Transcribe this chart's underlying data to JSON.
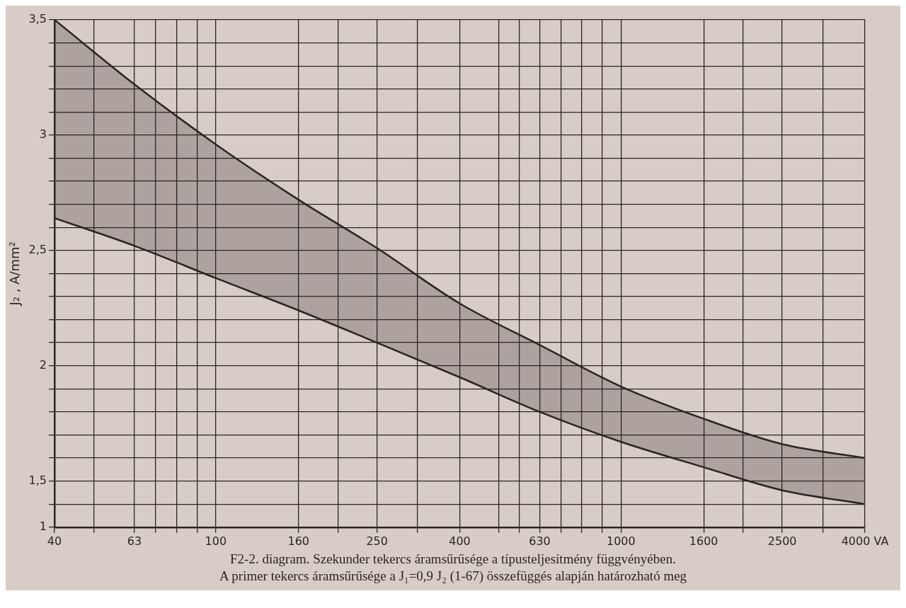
{
  "chart_data": {
    "type": "line",
    "ylabel": "J₂ , A/mm²",
    "log": "x",
    "grid": true,
    "marker": "none",
    "line_style": "solid",
    "xlim": [
      40,
      4000
    ],
    "xticks": [
      40,
      {
        "value": 50,
        "label": null
      },
      63,
      {
        "value": 71,
        "label": null
      },
      {
        "value": 80,
        "label": null
      },
      {
        "value": 90,
        "label": null
      },
      100,
      160,
      {
        "value": 200,
        "label": null
      },
      250,
      {
        "value": 315,
        "label": null
      },
      400,
      {
        "value": 500,
        "label": null
      },
      {
        "value": 560,
        "label": null
      },
      630,
      {
        "value": 710,
        "label": null
      },
      {
        "value": 800,
        "label": null
      },
      {
        "value": 900,
        "label": null
      },
      1000,
      1600,
      {
        "value": 2000,
        "label": null
      },
      2500,
      {
        "value": 3150,
        "label": null
      },
      {
        "value": 4000,
        "label": "4000 VA"
      }
    ],
    "ylim": [
      1.3,
      3.5
    ],
    "yticks": [
      {
        "value": 1.3,
        "label": "1"
      },
      {
        "value": 1.4,
        "label": null
      },
      {
        "value": 1.5,
        "label": "1,5"
      },
      {
        "value": 1.6,
        "label": null
      },
      {
        "value": 1.7,
        "label": null
      },
      {
        "value": 1.8,
        "label": null
      },
      {
        "value": 1.9,
        "label": null
      },
      2,
      {
        "value": 2.1,
        "label": null
      },
      {
        "value": 2.2,
        "label": null
      },
      {
        "value": 2.3,
        "label": null
      },
      {
        "value": 2.4,
        "label": null
      },
      {
        "value": 2.5,
        "label": "2,5"
      },
      {
        "value": 2.6,
        "label": null
      },
      {
        "value": 2.7,
        "label": null
      },
      {
        "value": 2.8,
        "label": null
      },
      {
        "value": 2.9,
        "label": null
      },
      3,
      {
        "value": 3.1,
        "label": null
      },
      {
        "value": 3.2,
        "label": null
      },
      {
        "value": 3.3,
        "label": null
      },
      {
        "value": 3.4,
        "label": null
      },
      {
        "value": 3.5,
        "label": "3,5"
      }
    ],
    "x": [
      40,
      63,
      100,
      160,
      250,
      400,
      630,
      1000,
      1600,
      2500,
      4000
    ],
    "series": [
      {
        "type": "area",
        "color": "#2b2522",
        "values": [
          3.5,
          3.22,
          2.96,
          2.72,
          2.51,
          2.27,
          2.09,
          1.91,
          1.77,
          1.66,
          1.6
        ]
      },
      {
        "color": "#2b2522",
        "values": [
          2.64,
          2.52,
          2.38,
          2.24,
          2.1,
          1.95,
          1.8,
          1.67,
          1.56,
          1.46,
          1.4
        ]
      }
    ],
    "annotations": [
      "F2-2. diagram. Szekunder tekercs áramsűrűsége a típusteljesítmény függvényében.",
      "A primer tekercs áramsűrűsége a J₁=0,9 J₂ (1-67) összefüggés alapján határozható meg"
    ]
  }
}
